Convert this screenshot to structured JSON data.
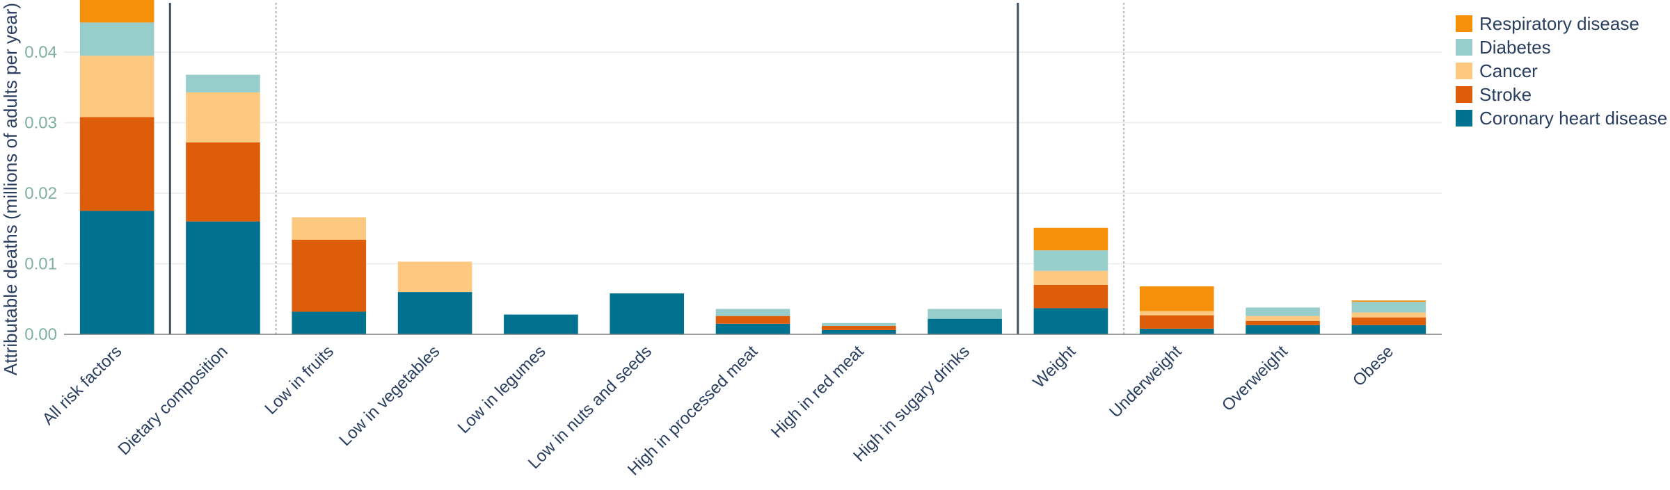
{
  "chart_data": {
    "type": "bar",
    "stacked": true,
    "ylabel": "Attributable deaths (millions of adults per year)",
    "xlabel": "",
    "ylim": [
      0,
      0.047
    ],
    "yticks": [
      0,
      0.01,
      0.02,
      0.03,
      0.04
    ],
    "ytick_labels": [
      "0.00",
      "0.01",
      "0.02",
      "0.03",
      "0.04"
    ],
    "grid": true,
    "legend_position": "top-right",
    "categories": [
      "All risk factors",
      "Dietary composition",
      "Low in fruits",
      "Low in vegetables",
      "Low in legumes",
      "Low in nuts and seeds",
      "High in processed meat",
      "High in red meat",
      "High in sugary drinks",
      "Weight",
      "Underweight",
      "Overweight",
      "Obese"
    ],
    "series": [
      {
        "name": "Coronary heart disease",
        "color": "#00728f",
        "values": [
          0.0175,
          0.016,
          0.0032,
          0.006,
          0.0028,
          0.0058,
          0.0015,
          0.0006,
          0.0022,
          0.0037,
          0.0008,
          0.0013,
          0.0013
        ]
      },
      {
        "name": "Stroke",
        "color": "#de5d0b",
        "values": [
          0.0133,
          0.0112,
          0.0102,
          0.0,
          0.0,
          0.0,
          0.0011,
          0.0006,
          0.0,
          0.0033,
          0.0019,
          0.0006,
          0.0011
        ]
      },
      {
        "name": "Cancer",
        "color": "#fdc981",
        "values": [
          0.0087,
          0.0071,
          0.0032,
          0.0043,
          0.0,
          0.0,
          0.0,
          0.0,
          0.0,
          0.002,
          0.0006,
          0.0007,
          0.0007
        ]
      },
      {
        "name": "Diabetes",
        "color": "#97cdca",
        "values": [
          0.0047,
          0.0025,
          0.0,
          0.0,
          0.0,
          0.0,
          0.001,
          0.0004,
          0.0014,
          0.0029,
          0.0,
          0.0012,
          0.0015
        ]
      },
      {
        "name": "Respiratory disease",
        "color": "#f6900a",
        "values": [
          0.0035,
          0.0,
          0.0,
          0.0,
          0.0,
          0.0,
          0.0,
          0.0,
          0.0,
          0.0032,
          0.0035,
          0.0,
          0.0002
        ]
      }
    ],
    "separators": [
      {
        "after_index": 0,
        "style": "solid"
      },
      {
        "after_index": 1,
        "style": "dotted"
      },
      {
        "after_index": 8,
        "style": "solid"
      },
      {
        "after_index": 9,
        "style": "dotted"
      }
    ]
  }
}
